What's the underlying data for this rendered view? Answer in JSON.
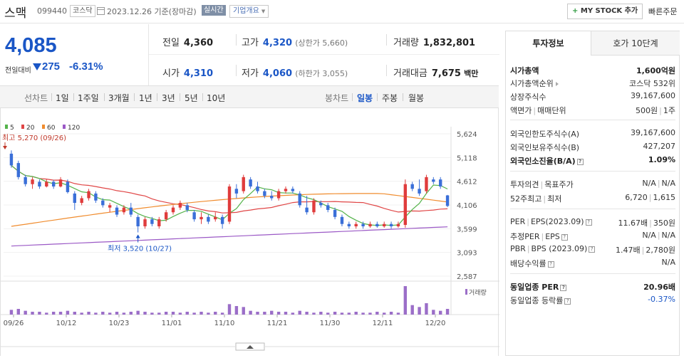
{
  "header": {
    "stock_name": "스맥",
    "stock_code": "099440",
    "market": "코스닥",
    "date": "2023.12.26 기준(장마감)",
    "realtime": "실시간",
    "company_overview": "기업개요",
    "mystock_label": "MY STOCK 추가",
    "quick_order": "빠른주문"
  },
  "price": {
    "current": "4,085",
    "diff_label": "전일대비",
    "diff": "275",
    "rate": "-6.31%"
  },
  "quote": {
    "prev_label": "전일",
    "prev": "4,360",
    "high_label": "고가",
    "high": "4,320",
    "upper_limit": "(상한가 5,660)",
    "volume_label": "거래량",
    "volume": "1,832,801",
    "open_label": "시가",
    "open": "4,310",
    "low_label": "저가",
    "low": "4,060",
    "lower_limit": "(하한가 3,055)",
    "amount_label": "거래대금",
    "amount": "7,675",
    "amount_unit": "백만"
  },
  "period_bar": {
    "line_label": "선차트",
    "periods": [
      "1일",
      "1주일",
      "3개월",
      "1년",
      "3년",
      "5년",
      "10년"
    ],
    "candle_label": "봉차트",
    "candles": [
      "일봉",
      "주봉",
      "월봉"
    ],
    "active_candle": "일봉"
  },
  "colors": {
    "up": "#e03c3c",
    "down": "#3a6fd8",
    "ma5": "#54b34a",
    "ma20": "#e04646",
    "ma60": "#f08c2e",
    "ma120": "#9b59c6",
    "volume": "#9b6ec8"
  },
  "chart_data": {
    "type": "candlestick",
    "legend": [
      "5",
      "20",
      "60",
      "120"
    ],
    "y_ticks": [
      "5,624",
      "5,118",
      "4,612",
      "4,106",
      "3,599",
      "3,093",
      "2,587"
    ],
    "ylim": [
      2587,
      5624
    ],
    "x_ticks": [
      "09/26",
      "10/12",
      "10/23",
      "11/01",
      "11/10",
      "11/21",
      "11/30",
      "12/11",
      "12/20"
    ],
    "annotations": {
      "high": "최고 5,270 (09/26)",
      "low": "최저 3,520 (10/27)"
    },
    "volume_label": "거래량",
    "candles": [
      {
        "o": 5200,
        "c": 4950,
        "h": 5270,
        "l": 4900
      },
      {
        "o": 5000,
        "c": 4700,
        "h": 5050,
        "l": 4650
      },
      {
        "o": 4700,
        "c": 4550,
        "h": 4750,
        "l": 4500
      },
      {
        "o": 4550,
        "c": 4650,
        "h": 4700,
        "l": 4450
      },
      {
        "o": 4600,
        "c": 4500,
        "h": 4650,
        "l": 4450
      },
      {
        "o": 4500,
        "c": 4600,
        "h": 4650,
        "l": 4480
      },
      {
        "o": 4600,
        "c": 4500,
        "h": 4640,
        "l": 4450
      },
      {
        "o": 4500,
        "c": 4650,
        "h": 4700,
        "l": 4480
      },
      {
        "o": 4600,
        "c": 4380,
        "h": 4650,
        "l": 4350
      },
      {
        "o": 4350,
        "c": 4150,
        "h": 4400,
        "l": 4000
      },
      {
        "o": 4150,
        "c": 4250,
        "h": 4300,
        "l": 4100
      },
      {
        "o": 4250,
        "c": 4400,
        "h": 4450,
        "l": 4200
      },
      {
        "o": 4350,
        "c": 4200,
        "h": 4400,
        "l": 4150
      },
      {
        "o": 4200,
        "c": 4100,
        "h": 4250,
        "l": 4050
      },
      {
        "o": 4050,
        "c": 4100,
        "h": 4150,
        "l": 3950
      },
      {
        "o": 4050,
        "c": 3900,
        "h": 4100,
        "l": 3850
      },
      {
        "o": 3950,
        "c": 4050,
        "h": 4100,
        "l": 3900
      },
      {
        "o": 4050,
        "c": 3900,
        "h": 4150,
        "l": 3850
      },
      {
        "o": 3850,
        "c": 3650,
        "h": 3900,
        "l": 3520
      },
      {
        "o": 3650,
        "c": 3800,
        "h": 3850,
        "l": 3600
      },
      {
        "o": 3800,
        "c": 3700,
        "h": 3850,
        "l": 3650
      },
      {
        "o": 3650,
        "c": 3800,
        "h": 3850,
        "l": 3600
      },
      {
        "o": 3800,
        "c": 3950,
        "h": 4000,
        "l": 3750
      },
      {
        "o": 3950,
        "c": 4050,
        "h": 4100,
        "l": 3900
      },
      {
        "o": 4050,
        "c": 4150,
        "h": 4200,
        "l": 4000
      },
      {
        "o": 4100,
        "c": 4000,
        "h": 4150,
        "l": 3950
      },
      {
        "o": 3950,
        "c": 3800,
        "h": 4000,
        "l": 3750
      },
      {
        "o": 3800,
        "c": 3850,
        "h": 3950,
        "l": 3700
      },
      {
        "o": 3850,
        "c": 3750,
        "h": 3900,
        "l": 3700
      },
      {
        "o": 3800,
        "c": 3850,
        "h": 3950,
        "l": 3750
      },
      {
        "o": 3850,
        "c": 3700,
        "h": 3900,
        "l": 3600
      },
      {
        "o": 3750,
        "c": 4500,
        "h": 4550,
        "l": 3700
      },
      {
        "o": 4450,
        "c": 4350,
        "h": 4550,
        "l": 4250
      },
      {
        "o": 4400,
        "c": 4700,
        "h": 4750,
        "l": 4350
      },
      {
        "o": 4650,
        "c": 4500,
        "h": 4700,
        "l": 4450
      },
      {
        "o": 4500,
        "c": 4400,
        "h": 4600,
        "l": 4350
      },
      {
        "o": 4400,
        "c": 4300,
        "h": 4450,
        "l": 4250
      },
      {
        "o": 4300,
        "c": 4250,
        "h": 4400,
        "l": 4200
      },
      {
        "o": 4250,
        "c": 4400,
        "h": 4450,
        "l": 4200
      },
      {
        "o": 4400,
        "c": 4450,
        "h": 4500,
        "l": 4350
      },
      {
        "o": 4450,
        "c": 4400,
        "h": 4500,
        "l": 4350
      },
      {
        "o": 4350,
        "c": 4100,
        "h": 4400,
        "l": 4050
      },
      {
        "o": 4050,
        "c": 3950,
        "h": 4300,
        "l": 3900
      },
      {
        "o": 3950,
        "c": 4200,
        "h": 4250,
        "l": 3900
      },
      {
        "o": 4150,
        "c": 4100,
        "h": 4200,
        "l": 4050
      },
      {
        "o": 4100,
        "c": 4000,
        "h": 4150,
        "l": 3950
      },
      {
        "o": 4000,
        "c": 3850,
        "h": 4050,
        "l": 3800
      },
      {
        "o": 3850,
        "c": 3700,
        "h": 3900,
        "l": 3650
      },
      {
        "o": 3700,
        "c": 3650,
        "h": 3750,
        "l": 3600
      },
      {
        "o": 3650,
        "c": 3700,
        "h": 3750,
        "l": 3600
      },
      {
        "o": 3700,
        "c": 3650,
        "h": 3750,
        "l": 3600
      },
      {
        "o": 3650,
        "c": 3700,
        "h": 3750,
        "l": 3620
      },
      {
        "o": 3700,
        "c": 3650,
        "h": 3750,
        "l": 3620
      },
      {
        "o": 3650,
        "c": 3700,
        "h": 3750,
        "l": 3620
      },
      {
        "o": 3700,
        "c": 3650,
        "h": 3750,
        "l": 3600
      },
      {
        "o": 3650,
        "c": 3700,
        "h": 3750,
        "l": 3620
      },
      {
        "o": 3680,
        "c": 4550,
        "h": 4650,
        "l": 3620
      },
      {
        "o": 4550,
        "c": 4450,
        "h": 4600,
        "l": 4400
      },
      {
        "o": 4450,
        "c": 4350,
        "h": 4650,
        "l": 4300
      },
      {
        "o": 4400,
        "c": 4700,
        "h": 4750,
        "l": 4350
      },
      {
        "o": 4650,
        "c": 4600,
        "h": 4700,
        "l": 4550
      },
      {
        "o": 4650,
        "c": 4500,
        "h": 4700,
        "l": 4450
      },
      {
        "o": 4310,
        "c": 4085,
        "h": 4320,
        "l": 4060
      }
    ],
    "volumes": [
      5,
      6,
      4,
      3,
      3,
      2,
      3,
      3,
      4,
      3,
      2,
      3,
      2,
      3,
      2,
      3,
      2,
      3,
      4,
      3,
      2,
      2,
      3,
      3,
      2,
      3,
      2,
      3,
      2,
      3,
      2,
      11,
      9,
      8,
      4,
      3,
      3,
      4,
      3,
      3,
      2,
      4,
      3,
      2,
      3,
      2,
      3,
      2,
      2,
      3,
      2,
      2,
      3,
      2,
      3,
      2,
      30,
      10,
      8,
      12,
      5,
      4,
      6
    ]
  },
  "info_panel": {
    "tab_active": "투자정보",
    "tab_inactive": "호가 10단계",
    "rows": [
      {
        "label": "시가총액",
        "value": "1,600억원"
      },
      {
        "label": "시가총액순위",
        "value": "코스닥 532위"
      },
      {
        "label": "상장주식수",
        "value": "39,167,600"
      },
      {
        "label": "액면가",
        "label2": "매매단위",
        "value": "500원",
        "value2": "1주"
      },
      {
        "label": "외국인한도주식수(A)",
        "value": "39,167,600"
      },
      {
        "label": "외국인보유주식수(B)",
        "value": "427,207"
      },
      {
        "label": "외국인소진율(B/A)",
        "value": "1.09%"
      },
      {
        "label": "투자의견",
        "label2": "목표주가",
        "value": "N/A",
        "value2": "N/A"
      },
      {
        "label": "52주최고",
        "label2": "최저",
        "value": "6,720",
        "value2": "1,615"
      },
      {
        "label": "PER",
        "label2": "EPS(2023.09)",
        "value": "11.67배",
        "value2": "350원"
      },
      {
        "label": "추정PER",
        "label2": "EPS",
        "value": "N/A",
        "value2": "N/A"
      },
      {
        "label": "PBR",
        "label2": "BPS (2023.09)",
        "value": "1.47배",
        "value2": "2,780원"
      },
      {
        "label": "배당수익률",
        "value": "N/A"
      },
      {
        "label": "동일업종 PER",
        "value": "20.96배"
      },
      {
        "label": "동일업종 등락률",
        "value": "-0.37%"
      }
    ]
  }
}
